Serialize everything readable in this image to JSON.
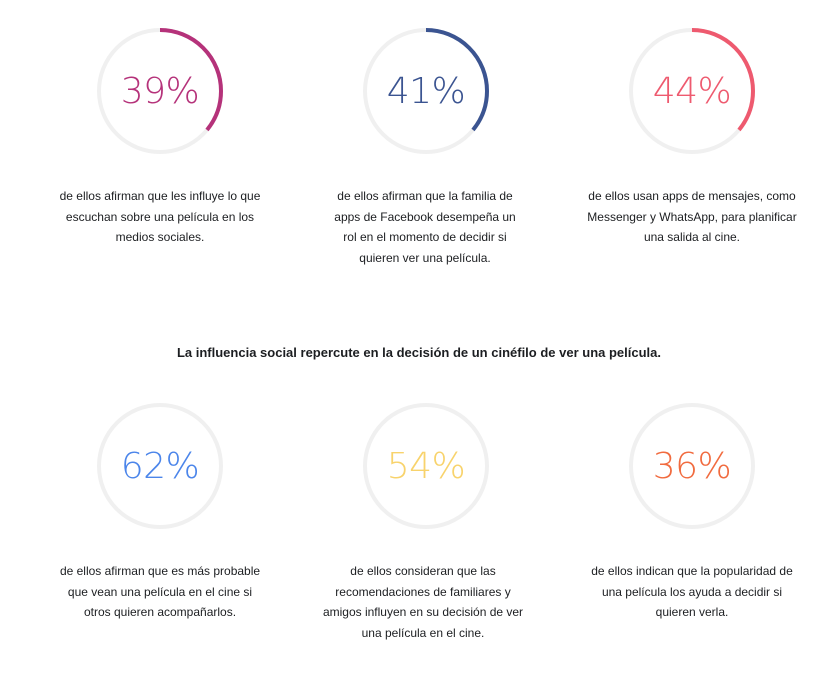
{
  "headline": "La influencia social repercute en la decisión de un cinéfilo de ver una película.",
  "stats": [
    {
      "value": 39,
      "label": "39%",
      "color": "#b5327a",
      "text": "de ellos afirman que les influye lo que escuchan sobre una película en los medios sociales."
    },
    {
      "value": 41,
      "label": "41%",
      "color": "#3b5491",
      "text": "de ellos afirman que la familia de apps de Facebook desempeña un rol en el momento de decidir si quieren ver una película."
    },
    {
      "value": 44,
      "label": "44%",
      "color": "#ee5a6f",
      "text": "de ellos usan apps de mensajes, como Messenger y WhatsApp, para planificar una salida al cine."
    },
    {
      "value": 62,
      "label": "62%",
      "color": "#4b85ea",
      "text": "de ellos afirman que es más probable que vean una película en el cine si otros quieren acompañarlos."
    },
    {
      "value": 54,
      "label": "54%",
      "color": "#f8d36c",
      "text": "de ellos consideran que las recomendaciones de familiares y amigos influyen en su decisión de ver una película en el cine."
    },
    {
      "value": 36,
      "label": "36%",
      "color": "#f16b3f",
      "text": "de ellos indican que la popularidad de una película los ayuda a decidir si quieren verla."
    }
  ],
  "track_color": "#f0f0f0"
}
